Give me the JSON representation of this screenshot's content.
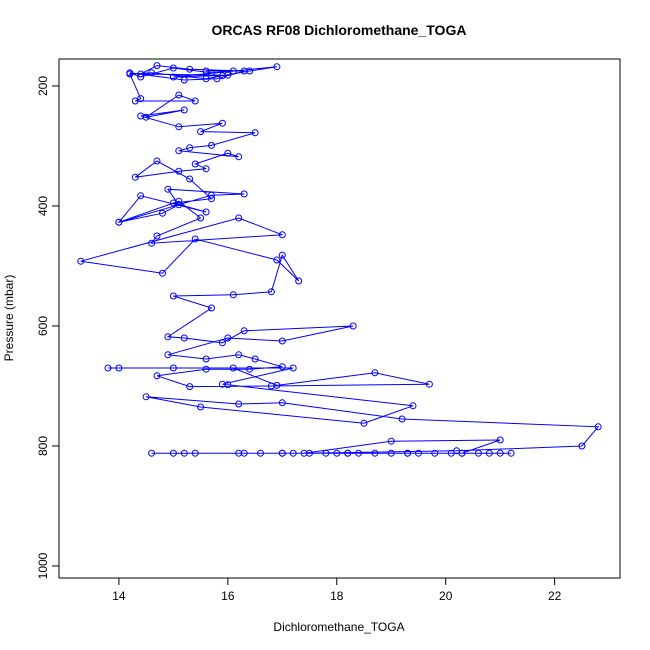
{
  "chart_data": {
    "type": "line",
    "title": "ORCAS RF08 Dichloromethane_TOGA",
    "xlabel": "Dichloromethane_TOGA",
    "ylabel": "Pressure (mbar)",
    "xlim": [
      12.9,
      23.2
    ],
    "ylim": [
      1020,
      155
    ],
    "y_reversed": true,
    "x_ticks": [
      14,
      16,
      18,
      20,
      22
    ],
    "y_ticks": [
      200,
      400,
      600,
      800,
      1000
    ],
    "grid": false,
    "color": "#0000ff",
    "series": [
      {
        "x": [
          21.2,
          21.0,
          20.8,
          20.6,
          20.3,
          20.1,
          19.8,
          19.5,
          19.3,
          19.0,
          18.7,
          18.4,
          18.2,
          18.0,
          17.8,
          17.5,
          17.2,
          17.0,
          16.6,
          16.2,
          15.4,
          15.0,
          14.6,
          15.2,
          16.3,
          17.0,
          18.2,
          19.3,
          20.3,
          21.0,
          19.0,
          17.4,
          20.2,
          22.5,
          22.8,
          19.2,
          17.0,
          16.2,
          14.5,
          15.5,
          18.5,
          19.4,
          16.0,
          15.9,
          17.2,
          14.0,
          13.8,
          15.0,
          16.1,
          16.9,
          18.7,
          19.7,
          16.8,
          15.3,
          14.7,
          15.6,
          16.4,
          17.0,
          16.5,
          16.2,
          15.6,
          14.9,
          16.0,
          17.0,
          18.3,
          16.3,
          15.9,
          15.2,
          14.9,
          15.7,
          15.0,
          16.1,
          16.8,
          17.0,
          17.3,
          16.9,
          15.4,
          14.8,
          13.3,
          16.2,
          17.0,
          14.6,
          14.7,
          15.5,
          15.1,
          14.0,
          15.7,
          16.3,
          14.9,
          15.1,
          14.8,
          14.0,
          14.4,
          15.6,
          15.0,
          15.7,
          15.3,
          14.7,
          14.3,
          15.1,
          15.6,
          15.4,
          16.0,
          16.2,
          15.1,
          15.3,
          15.7,
          16.5,
          15.5,
          15.9,
          15.1,
          14.4,
          15.2,
          14.5,
          15.1,
          15.4,
          14.3,
          14.4,
          14.2,
          14.6,
          15.6,
          15.9,
          16.4,
          16.9,
          15.0,
          16.0,
          14.4,
          14.7,
          15.3,
          16.3,
          15.8,
          15.2,
          14.2,
          14.4,
          15.0,
          15.7,
          16.1,
          15.6
        ],
        "y": [
          812,
          812,
          812,
          812,
          812,
          812,
          812,
          812,
          812,
          812,
          812,
          812,
          812,
          812,
          812,
          812,
          812,
          812,
          812,
          812,
          812,
          812,
          812,
          812,
          812,
          812,
          812,
          812,
          812,
          790,
          792,
          812,
          808,
          800,
          768,
          755,
          728,
          730,
          718,
          735,
          762,
          733,
          698,
          697,
          670,
          670,
          670,
          670,
          670,
          699,
          678,
          697,
          700,
          701,
          683,
          672,
          672,
          668,
          655,
          648,
          655,
          648,
          620,
          625,
          600,
          608,
          628,
          620,
          618,
          570,
          550,
          548,
          543,
          482,
          525,
          490,
          455,
          512,
          492,
          420,
          448,
          462,
          450,
          420,
          392,
          427,
          382,
          380,
          372,
          398,
          412,
          427,
          383,
          410,
          395,
          388,
          355,
          325,
          352,
          342,
          338,
          330,
          312,
          318,
          308,
          303,
          299,
          278,
          276,
          262,
          268,
          250,
          240,
          252,
          215,
          225,
          225,
          221,
          180,
          178,
          188,
          183,
          175,
          168,
          185,
          182,
          180,
          166,
          172,
          175,
          188,
          190,
          178,
          185,
          170,
          178,
          175,
          175
        ]
      }
    ]
  }
}
